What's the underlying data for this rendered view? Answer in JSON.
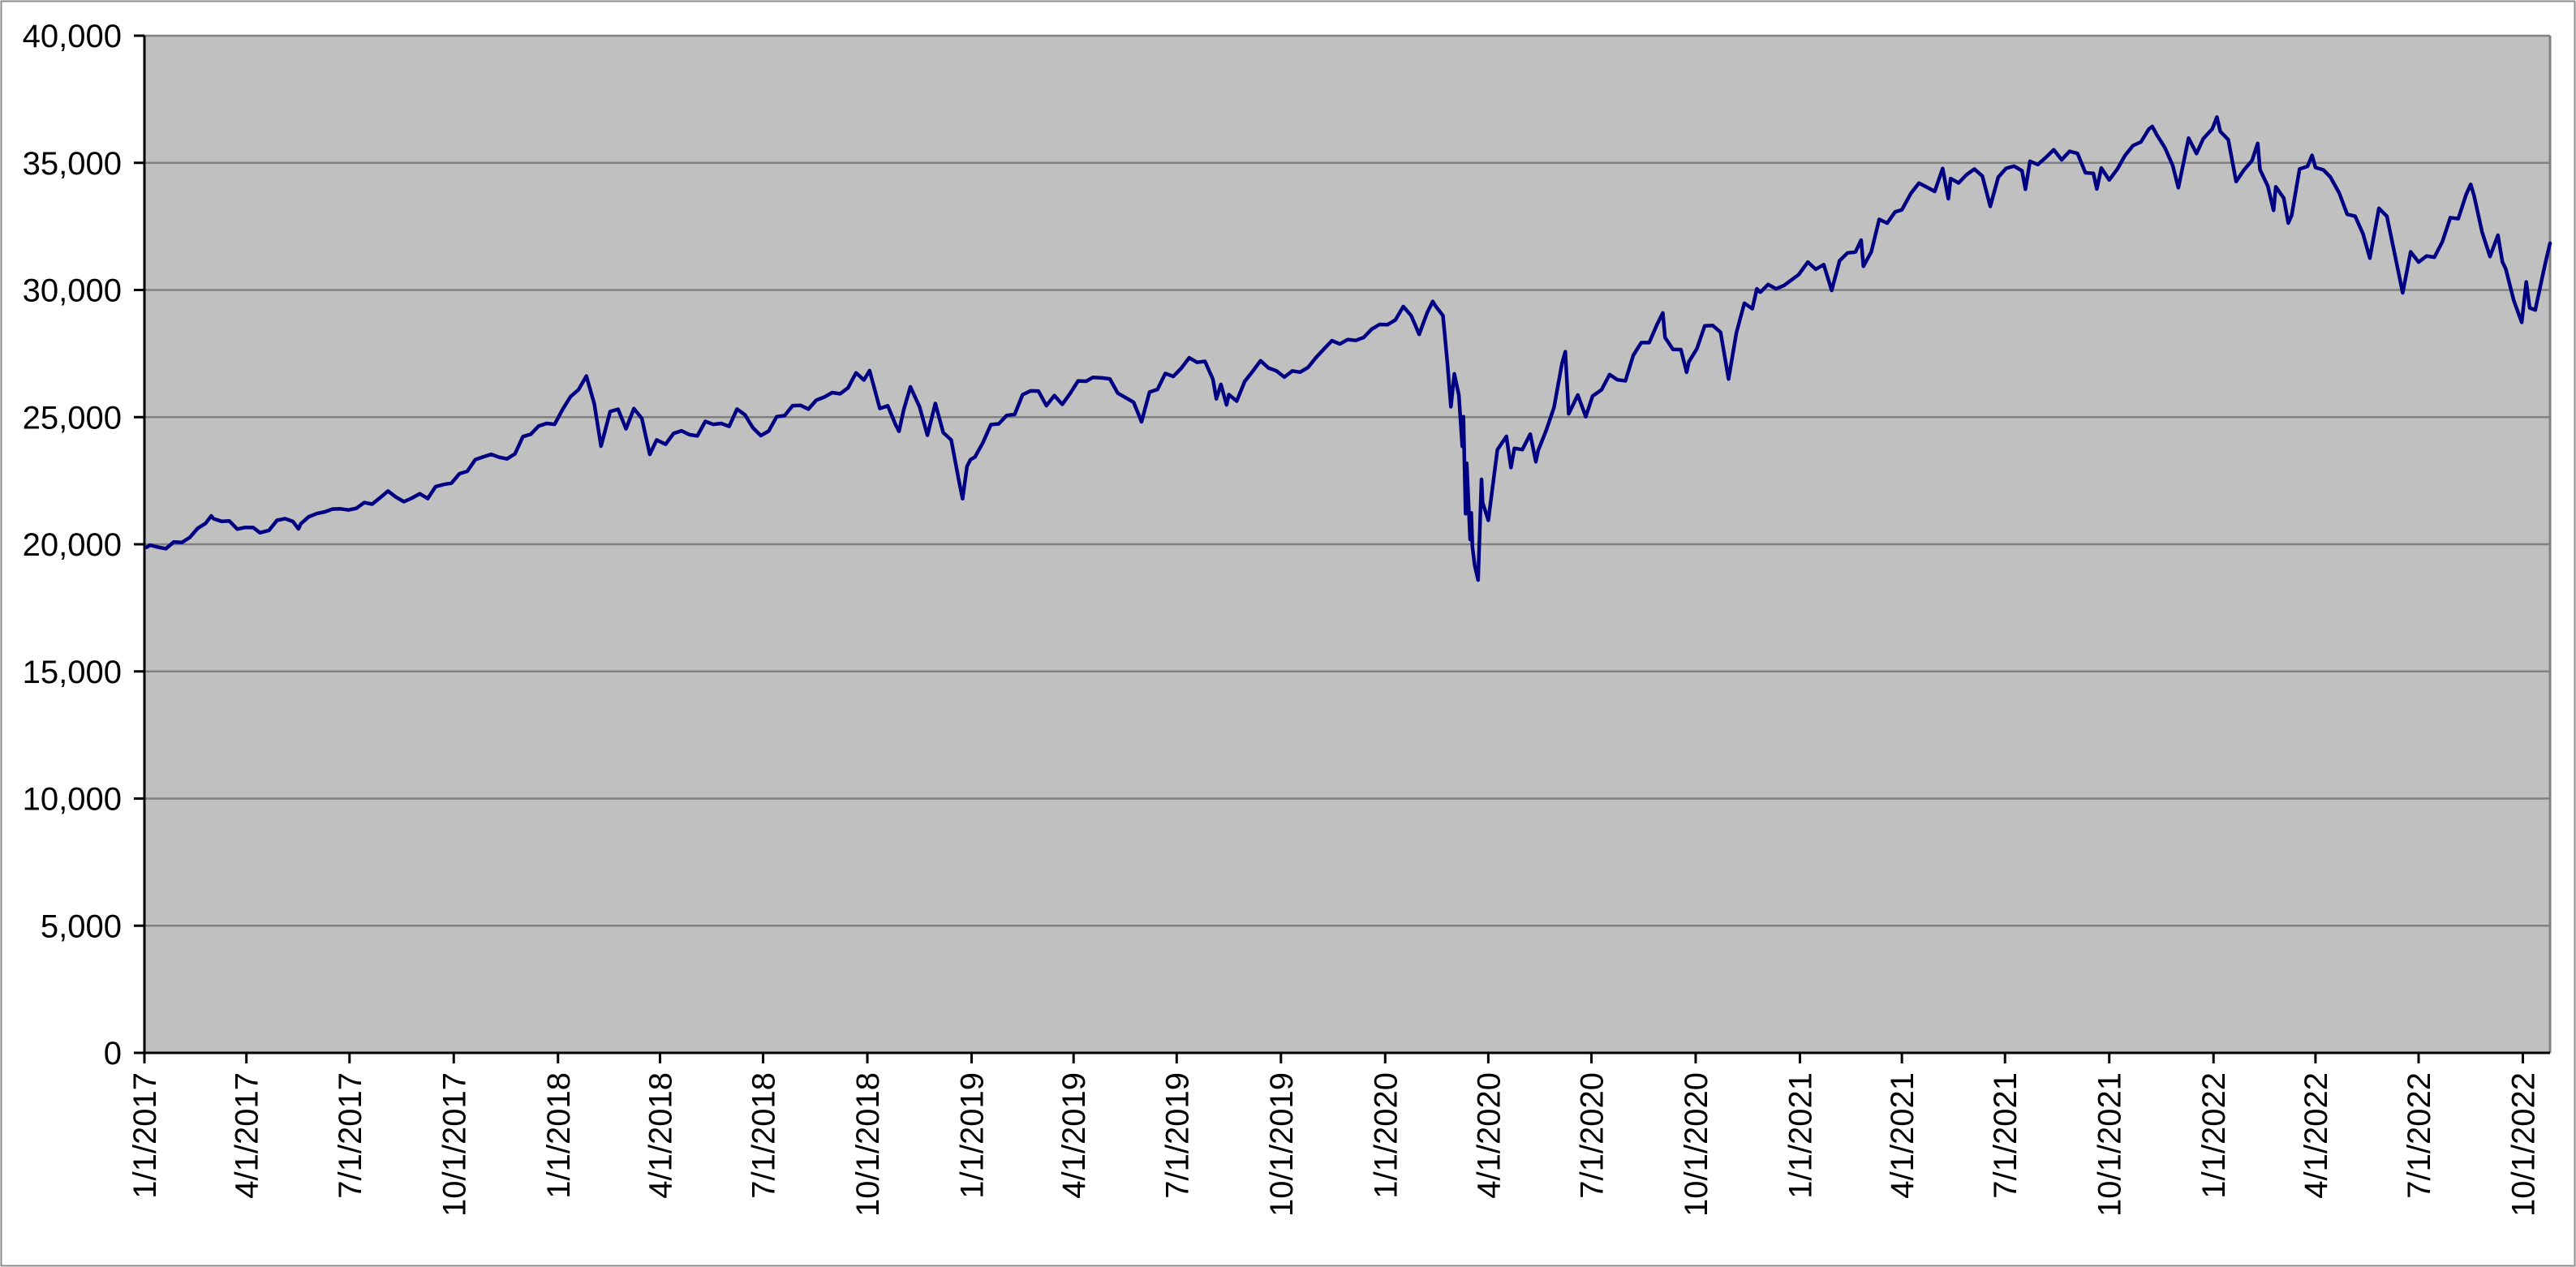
{
  "chart_data": {
    "type": "line",
    "title": "",
    "legend": "none",
    "grid": true,
    "colors": {
      "series_line": "#000082",
      "plot_background": "#c0c0c0",
      "gridline": "#808080",
      "axis_line": "#000000",
      "plot_border": "#808080",
      "outer_border": "#8c8c8c",
      "label_text": "#000000"
    },
    "x_axis": {
      "range": [
        "2017-01-01",
        "2022-10-25"
      ],
      "label_rotation_deg": -90,
      "tick_labels": [
        "1/1/2017",
        "4/1/2017",
        "7/1/2017",
        "10/1/2017",
        "1/1/2018",
        "4/1/2018",
        "7/1/2018",
        "10/1/2018",
        "1/1/2019",
        "4/1/2019",
        "7/1/2019",
        "10/1/2019",
        "1/1/2020",
        "4/1/2020",
        "7/1/2020",
        "10/1/2020",
        "1/1/2021",
        "4/1/2021",
        "7/1/2021",
        "10/1/2021",
        "1/1/2022",
        "4/1/2022",
        "7/1/2022",
        "10/1/2022"
      ]
    },
    "y_axis": {
      "min": 0,
      "max": 40000,
      "step": 5000,
      "tick_labels": [
        "0",
        "5,000",
        "10,000",
        "15,000",
        "20,000",
        "25,000",
        "30,000",
        "35,000",
        "40,000"
      ]
    },
    "points": [
      [
        "2017-01-03",
        19882
      ],
      [
        "2017-01-06",
        19964
      ],
      [
        "2017-01-13",
        19886
      ],
      [
        "2017-01-20",
        19827
      ],
      [
        "2017-01-27",
        20094
      ],
      [
        "2017-02-03",
        20071
      ],
      [
        "2017-02-10",
        20269
      ],
      [
        "2017-02-17",
        20624
      ],
      [
        "2017-02-24",
        20822
      ],
      [
        "2017-03-01",
        21115
      ],
      [
        "2017-03-03",
        21006
      ],
      [
        "2017-03-10",
        20903
      ],
      [
        "2017-03-17",
        20915
      ],
      [
        "2017-03-24",
        20597
      ],
      [
        "2017-03-31",
        20663
      ],
      [
        "2017-04-07",
        20656
      ],
      [
        "2017-04-13",
        20453
      ],
      [
        "2017-04-21",
        20548
      ],
      [
        "2017-04-28",
        20941
      ],
      [
        "2017-05-05",
        21007
      ],
      [
        "2017-05-12",
        20896
      ],
      [
        "2017-05-17",
        20607
      ],
      [
        "2017-05-19",
        20805
      ],
      [
        "2017-05-26",
        21080
      ],
      [
        "2017-06-02",
        21206
      ],
      [
        "2017-06-09",
        21272
      ],
      [
        "2017-06-16",
        21384
      ],
      [
        "2017-06-23",
        21395
      ],
      [
        "2017-06-30",
        21350
      ],
      [
        "2017-07-07",
        21414
      ],
      [
        "2017-07-14",
        21638
      ],
      [
        "2017-07-21",
        21580
      ],
      [
        "2017-07-28",
        21830
      ],
      [
        "2017-08-04",
        22093
      ],
      [
        "2017-08-11",
        21858
      ],
      [
        "2017-08-18",
        21675
      ],
      [
        "2017-08-25",
        21814
      ],
      [
        "2017-09-01",
        21988
      ],
      [
        "2017-09-08",
        21798
      ],
      [
        "2017-09-15",
        22268
      ],
      [
        "2017-09-22",
        22350
      ],
      [
        "2017-09-29",
        22405
      ],
      [
        "2017-10-06",
        22774
      ],
      [
        "2017-10-13",
        22872
      ],
      [
        "2017-10-20",
        23329
      ],
      [
        "2017-10-27",
        23434
      ],
      [
        "2017-11-03",
        23539
      ],
      [
        "2017-11-10",
        23422
      ],
      [
        "2017-11-17",
        23358
      ],
      [
        "2017-11-24",
        23558
      ],
      [
        "2017-12-01",
        24232
      ],
      [
        "2017-12-08",
        24329
      ],
      [
        "2017-12-15",
        24652
      ],
      [
        "2017-12-22",
        24754
      ],
      [
        "2017-12-29",
        24719
      ],
      [
        "2018-01-05",
        25296
      ],
      [
        "2018-01-12",
        25803
      ],
      [
        "2018-01-19",
        26072
      ],
      [
        "2018-01-26",
        26617
      ],
      [
        "2018-02-02",
        25521
      ],
      [
        "2018-02-08",
        23860
      ],
      [
        "2018-02-16",
        25219
      ],
      [
        "2018-02-23",
        25310
      ],
      [
        "2018-03-02",
        24538
      ],
      [
        "2018-03-09",
        25336
      ],
      [
        "2018-03-16",
        24947
      ],
      [
        "2018-03-23",
        23533
      ],
      [
        "2018-03-29",
        24103
      ],
      [
        "2018-04-06",
        23933
      ],
      [
        "2018-04-13",
        24360
      ],
      [
        "2018-04-20",
        24463
      ],
      [
        "2018-04-27",
        24311
      ],
      [
        "2018-05-04",
        24263
      ],
      [
        "2018-05-11",
        24831
      ],
      [
        "2018-05-18",
        24715
      ],
      [
        "2018-05-25",
        24753
      ],
      [
        "2018-06-01",
        24635
      ],
      [
        "2018-06-08",
        25317
      ],
      [
        "2018-06-15",
        25090
      ],
      [
        "2018-06-22",
        24581
      ],
      [
        "2018-06-29",
        24271
      ],
      [
        "2018-07-06",
        24456
      ],
      [
        "2018-07-13",
        25019
      ],
      [
        "2018-07-20",
        25058
      ],
      [
        "2018-07-27",
        25451
      ],
      [
        "2018-08-03",
        25463
      ],
      [
        "2018-08-10",
        25313
      ],
      [
        "2018-08-17",
        25669
      ],
      [
        "2018-08-24",
        25790
      ],
      [
        "2018-08-31",
        25965
      ],
      [
        "2018-09-07",
        25917
      ],
      [
        "2018-09-14",
        26154
      ],
      [
        "2018-09-21",
        26744
      ],
      [
        "2018-09-28",
        26458
      ],
      [
        "2018-10-03",
        26828
      ],
      [
        "2018-10-12",
        25340
      ],
      [
        "2018-10-19",
        25444
      ],
      [
        "2018-10-26",
        24688
      ],
      [
        "2018-10-29",
        24443
      ],
      [
        "2018-11-02",
        25271
      ],
      [
        "2018-11-08",
        26191
      ],
      [
        "2018-11-16",
        25413
      ],
      [
        "2018-11-23",
        24286
      ],
      [
        "2018-11-30",
        25538
      ],
      [
        "2018-12-07",
        24389
      ],
      [
        "2018-12-14",
        24101
      ],
      [
        "2018-12-21",
        22445
      ],
      [
        "2018-12-24",
        21792
      ],
      [
        "2018-12-28",
        23062
      ],
      [
        "2018-12-31",
        23327
      ],
      [
        "2019-01-04",
        23433
      ],
      [
        "2019-01-11",
        23996
      ],
      [
        "2019-01-18",
        24706
      ],
      [
        "2019-01-25",
        24737
      ],
      [
        "2019-02-01",
        25064
      ],
      [
        "2019-02-08",
        25106
      ],
      [
        "2019-02-15",
        25883
      ],
      [
        "2019-02-22",
        26032
      ],
      [
        "2019-03-01",
        26026
      ],
      [
        "2019-03-08",
        25450
      ],
      [
        "2019-03-15",
        25849
      ],
      [
        "2019-03-22",
        25502
      ],
      [
        "2019-03-29",
        25929
      ],
      [
        "2019-04-05",
        26425
      ],
      [
        "2019-04-12",
        26412
      ],
      [
        "2019-04-18",
        26560
      ],
      [
        "2019-04-26",
        26543
      ],
      [
        "2019-05-03",
        26505
      ],
      [
        "2019-05-10",
        25942
      ],
      [
        "2019-05-17",
        25764
      ],
      [
        "2019-05-24",
        25586
      ],
      [
        "2019-05-31",
        24815
      ],
      [
        "2019-06-07",
        25984
      ],
      [
        "2019-06-14",
        26090
      ],
      [
        "2019-06-21",
        26719
      ],
      [
        "2019-06-28",
        26600
      ],
      [
        "2019-07-05",
        26922
      ],
      [
        "2019-07-12",
        27332
      ],
      [
        "2019-07-19",
        27154
      ],
      [
        "2019-07-26",
        27192
      ],
      [
        "2019-08-02",
        26485
      ],
      [
        "2019-08-05",
        25718
      ],
      [
        "2019-08-09",
        26287
      ],
      [
        "2019-08-14",
        25479
      ],
      [
        "2019-08-16",
        25886
      ],
      [
        "2019-08-23",
        25629
      ],
      [
        "2019-08-30",
        26403
      ],
      [
        "2019-09-06",
        26797
      ],
      [
        "2019-09-13",
        27219
      ],
      [
        "2019-09-20",
        26935
      ],
      [
        "2019-09-27",
        26820
      ],
      [
        "2019-10-04",
        26574
      ],
      [
        "2019-10-11",
        26817
      ],
      [
        "2019-10-18",
        26770
      ],
      [
        "2019-10-25",
        26958
      ],
      [
        "2019-11-01",
        27347
      ],
      [
        "2019-11-08",
        27681
      ],
      [
        "2019-11-15",
        28005
      ],
      [
        "2019-11-22",
        27876
      ],
      [
        "2019-11-29",
        28051
      ],
      [
        "2019-12-06",
        28015
      ],
      [
        "2019-12-13",
        28135
      ],
      [
        "2019-12-20",
        28455
      ],
      [
        "2019-12-27",
        28645
      ],
      [
        "2020-01-03",
        28635
      ],
      [
        "2020-01-10",
        28824
      ],
      [
        "2020-01-17",
        29348
      ],
      [
        "2020-01-24",
        28990
      ],
      [
        "2020-01-31",
        28256
      ],
      [
        "2020-02-07",
        29103
      ],
      [
        "2020-02-12",
        29551
      ],
      [
        "2020-02-14",
        29398
      ],
      [
        "2020-02-21",
        28992
      ],
      [
        "2020-02-25",
        27081
      ],
      [
        "2020-02-28",
        25409
      ],
      [
        "2020-03-02",
        26703
      ],
      [
        "2020-03-06",
        25865
      ],
      [
        "2020-03-09",
        23851
      ],
      [
        "2020-03-10",
        25018
      ],
      [
        "2020-03-12",
        21201
      ],
      [
        "2020-03-13",
        23186
      ],
      [
        "2020-03-16",
        20188
      ],
      [
        "2020-03-17",
        21237
      ],
      [
        "2020-03-18",
        19899
      ],
      [
        "2020-03-20",
        19174
      ],
      [
        "2020-03-23",
        18592
      ],
      [
        "2020-03-26",
        22552
      ],
      [
        "2020-03-27",
        21637
      ],
      [
        "2020-04-01",
        20944
      ],
      [
        "2020-04-09",
        23719
      ],
      [
        "2020-04-17",
        24242
      ],
      [
        "2020-04-21",
        23019
      ],
      [
        "2020-04-24",
        23775
      ],
      [
        "2020-05-01",
        23724
      ],
      [
        "2020-05-08",
        24331
      ],
      [
        "2020-05-13",
        23248
      ],
      [
        "2020-05-15",
        23685
      ],
      [
        "2020-05-22",
        24465
      ],
      [
        "2020-05-29",
        25383
      ],
      [
        "2020-06-05",
        27111
      ],
      [
        "2020-06-08",
        27572
      ],
      [
        "2020-06-11",
        25128
      ],
      [
        "2020-06-19",
        25871
      ],
      [
        "2020-06-26",
        25016
      ],
      [
        "2020-07-02",
        25827
      ],
      [
        "2020-07-10",
        26075
      ],
      [
        "2020-07-17",
        26672
      ],
      [
        "2020-07-24",
        26470
      ],
      [
        "2020-07-31",
        26428
      ],
      [
        "2020-08-07",
        27433
      ],
      [
        "2020-08-14",
        27931
      ],
      [
        "2020-08-21",
        27930
      ],
      [
        "2020-08-28",
        28654
      ],
      [
        "2020-09-02",
        29100
      ],
      [
        "2020-09-04",
        28133
      ],
      [
        "2020-09-11",
        27666
      ],
      [
        "2020-09-18",
        27657
      ],
      [
        "2020-09-23",
        26763
      ],
      [
        "2020-09-25",
        27174
      ],
      [
        "2020-10-02",
        27683
      ],
      [
        "2020-10-09",
        28587
      ],
      [
        "2020-10-16",
        28606
      ],
      [
        "2020-10-23",
        28336
      ],
      [
        "2020-10-30",
        26502
      ],
      [
        "2020-11-06",
        28323
      ],
      [
        "2020-11-13",
        29480
      ],
      [
        "2020-11-20",
        29263
      ],
      [
        "2020-11-24",
        30046
      ],
      [
        "2020-11-27",
        29910
      ],
      [
        "2020-12-04",
        30218
      ],
      [
        "2020-12-11",
        30046
      ],
      [
        "2020-12-18",
        30179
      ],
      [
        "2020-12-31",
        30606
      ],
      [
        "2021-01-08",
        31098
      ],
      [
        "2021-01-15",
        30814
      ],
      [
        "2021-01-22",
        30997
      ],
      [
        "2021-01-29",
        29983
      ],
      [
        "2021-02-05",
        31148
      ],
      [
        "2021-02-12",
        31458
      ],
      [
        "2021-02-19",
        31494
      ],
      [
        "2021-02-24",
        31961
      ],
      [
        "2021-02-26",
        30932
      ],
      [
        "2021-03-05",
        31496
      ],
      [
        "2021-03-12",
        32779
      ],
      [
        "2021-03-19",
        32628
      ],
      [
        "2021-03-26",
        33073
      ],
      [
        "2021-04-01",
        33153
      ],
      [
        "2021-04-09",
        33801
      ],
      [
        "2021-04-16",
        34201
      ],
      [
        "2021-04-23",
        34043
      ],
      [
        "2021-04-30",
        33875
      ],
      [
        "2021-05-07",
        34778
      ],
      [
        "2021-05-12",
        33588
      ],
      [
        "2021-05-14",
        34382
      ],
      [
        "2021-05-21",
        34208
      ],
      [
        "2021-05-28",
        34529
      ],
      [
        "2021-06-04",
        34756
      ],
      [
        "2021-06-11",
        34480
      ],
      [
        "2021-06-18",
        33290
      ],
      [
        "2021-06-25",
        34434
      ],
      [
        "2021-07-02",
        34786
      ],
      [
        "2021-07-09",
        34870
      ],
      [
        "2021-07-16",
        34688
      ],
      [
        "2021-07-19",
        33962
      ],
      [
        "2021-07-23",
        35062
      ],
      [
        "2021-07-30",
        34935
      ],
      [
        "2021-08-06",
        35209
      ],
      [
        "2021-08-13",
        35515
      ],
      [
        "2021-08-20",
        35120
      ],
      [
        "2021-08-27",
        35456
      ],
      [
        "2021-09-03",
        35369
      ],
      [
        "2021-09-10",
        34608
      ],
      [
        "2021-09-17",
        34585
      ],
      [
        "2021-09-20",
        33970
      ],
      [
        "2021-09-24",
        34798
      ],
      [
        "2021-10-01",
        34326
      ],
      [
        "2021-10-08",
        34746
      ],
      [
        "2021-10-15",
        35295
      ],
      [
        "2021-10-22",
        35677
      ],
      [
        "2021-10-29",
        35820
      ],
      [
        "2021-11-05",
        36328
      ],
      [
        "2021-11-08",
        36432
      ],
      [
        "2021-11-12",
        36100
      ],
      [
        "2021-11-19",
        35602
      ],
      [
        "2021-11-26",
        34899
      ],
      [
        "2021-12-01",
        34022
      ],
      [
        "2021-12-10",
        35971
      ],
      [
        "2021-12-17",
        35365
      ],
      [
        "2021-12-23",
        35950
      ],
      [
        "2021-12-31",
        36338
      ],
      [
        "2022-01-04",
        36800
      ],
      [
        "2022-01-07",
        36232
      ],
      [
        "2022-01-14",
        35912
      ],
      [
        "2022-01-21",
        34265
      ],
      [
        "2022-01-28",
        34725
      ],
      [
        "2022-02-04",
        35090
      ],
      [
        "2022-02-09",
        35768
      ],
      [
        "2022-02-11",
        34738
      ],
      [
        "2022-02-18",
        34079
      ],
      [
        "2022-02-23",
        33132
      ],
      [
        "2022-02-25",
        34059
      ],
      [
        "2022-03-04",
        33615
      ],
      [
        "2022-03-08",
        32632
      ],
      [
        "2022-03-11",
        32944
      ],
      [
        "2022-03-18",
        34755
      ],
      [
        "2022-03-25",
        34861
      ],
      [
        "2022-03-29",
        35294
      ],
      [
        "2022-04-01",
        34818
      ],
      [
        "2022-04-08",
        34721
      ],
      [
        "2022-04-14",
        34451
      ],
      [
        "2022-04-22",
        33811
      ],
      [
        "2022-04-29",
        32977
      ],
      [
        "2022-05-06",
        32899
      ],
      [
        "2022-05-13",
        32197
      ],
      [
        "2022-05-19",
        31253
      ],
      [
        "2022-05-27",
        33213
      ],
      [
        "2022-06-03",
        32900
      ],
      [
        "2022-06-10",
        31393
      ],
      [
        "2022-06-17",
        29889
      ],
      [
        "2022-06-24",
        31500
      ],
      [
        "2022-07-01",
        31097
      ],
      [
        "2022-07-08",
        31338
      ],
      [
        "2022-07-15",
        31288
      ],
      [
        "2022-07-22",
        31899
      ],
      [
        "2022-07-29",
        32845
      ],
      [
        "2022-08-05",
        32803
      ],
      [
        "2022-08-12",
        33761
      ],
      [
        "2022-08-16",
        34152
      ],
      [
        "2022-08-19",
        33707
      ],
      [
        "2022-08-26",
        32283
      ],
      [
        "2022-09-02",
        31318
      ],
      [
        "2022-09-09",
        32152
      ],
      [
        "2022-09-13",
        31105
      ],
      [
        "2022-09-16",
        30822
      ],
      [
        "2022-09-23",
        29590
      ],
      [
        "2022-09-30",
        28726
      ],
      [
        "2022-10-04",
        30316
      ],
      [
        "2022-10-07",
        29297
      ],
      [
        "2022-10-12",
        29211
      ],
      [
        "2022-10-14",
        29635
      ],
      [
        "2022-10-21",
        31083
      ],
      [
        "2022-10-25",
        31837
      ]
    ]
  }
}
